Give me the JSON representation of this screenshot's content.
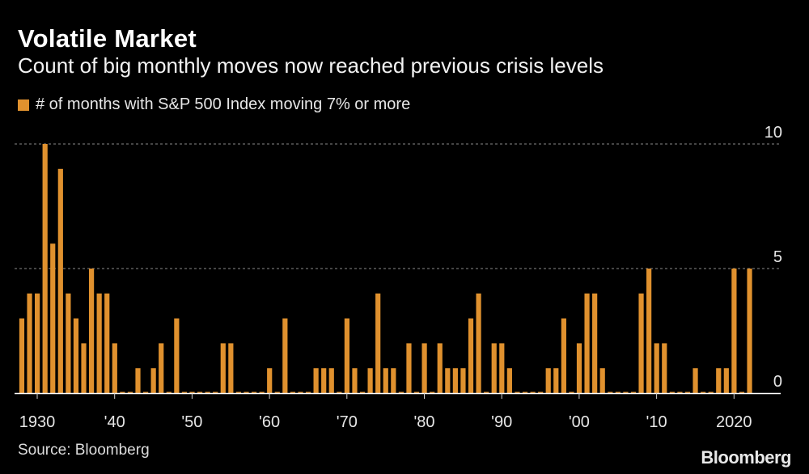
{
  "title": "Volatile Market",
  "subtitle": "Count of big monthly moves now reached previous crisis levels",
  "source": "Source: Bloomberg",
  "logo": "Bloomberg",
  "colors": {
    "bar": "#e0912e",
    "background": "#000000",
    "grid": "#8a8a8a",
    "axis": "#ffffff"
  },
  "chart_data": {
    "type": "bar",
    "legend": {
      "label": "# of months with S&P 500 Index moving 7% or more",
      "placement": "top-left"
    },
    "series": [
      {
        "name": "# of months with S&P 500 Index moving 7% or more"
      }
    ],
    "x": [
      1928,
      1929,
      1930,
      1931,
      1932,
      1933,
      1934,
      1935,
      1936,
      1937,
      1938,
      1939,
      1940,
      1941,
      1942,
      1943,
      1944,
      1945,
      1946,
      1947,
      1948,
      1949,
      1950,
      1951,
      1952,
      1953,
      1954,
      1955,
      1956,
      1957,
      1958,
      1959,
      1960,
      1961,
      1962,
      1963,
      1964,
      1965,
      1966,
      1967,
      1968,
      1969,
      1970,
      1971,
      1972,
      1973,
      1974,
      1975,
      1976,
      1977,
      1978,
      1979,
      1980,
      1981,
      1982,
      1983,
      1984,
      1985,
      1986,
      1987,
      1988,
      1989,
      1990,
      1991,
      1992,
      1993,
      1994,
      1995,
      1996,
      1997,
      1998,
      1999,
      2000,
      2001,
      2002,
      2003,
      2004,
      2005,
      2006,
      2007,
      2008,
      2009,
      2010,
      2011,
      2012,
      2013,
      2014,
      2015,
      2016,
      2017,
      2018,
      2019,
      2020,
      2021,
      2022
    ],
    "values": [
      3,
      4,
      4,
      10,
      6,
      9,
      4,
      3,
      2,
      5,
      4,
      4,
      2,
      0,
      0,
      1,
      0,
      1,
      2,
      0,
      3,
      0,
      0,
      0,
      0,
      0,
      2,
      2,
      0,
      0,
      0,
      0,
      1,
      0,
      3,
      0,
      0,
      0,
      1,
      1,
      1,
      0,
      3,
      1,
      0,
      1,
      4,
      1,
      1,
      0,
      2,
      0,
      2,
      0,
      2,
      1,
      1,
      1,
      3,
      4,
      0,
      2,
      2,
      1,
      0,
      0,
      0,
      0,
      1,
      1,
      3,
      0,
      2,
      4,
      4,
      1,
      0,
      0,
      0,
      0,
      4,
      5,
      2,
      2,
      0,
      0,
      0,
      1,
      0,
      0,
      1,
      1,
      5,
      0,
      5
    ],
    "ylim": [
      0,
      10
    ],
    "xlim": [
      1928,
      2022
    ],
    "y_ticks": [
      "0",
      "5",
      "10"
    ],
    "y_axis_side": "right",
    "x_ticks": [
      {
        "year": 1930,
        "label": "1930"
      },
      {
        "year": 1940,
        "label": "'40"
      },
      {
        "year": 1950,
        "label": "'50"
      },
      {
        "year": 1960,
        "label": "'60"
      },
      {
        "year": 1970,
        "label": "'70"
      },
      {
        "year": 1980,
        "label": "'80"
      },
      {
        "year": 1990,
        "label": "'90"
      },
      {
        "year": 2000,
        "label": "'00"
      },
      {
        "year": 2010,
        "label": "'10"
      },
      {
        "year": 2020,
        "label": "2020"
      }
    ],
    "grid": true
  }
}
